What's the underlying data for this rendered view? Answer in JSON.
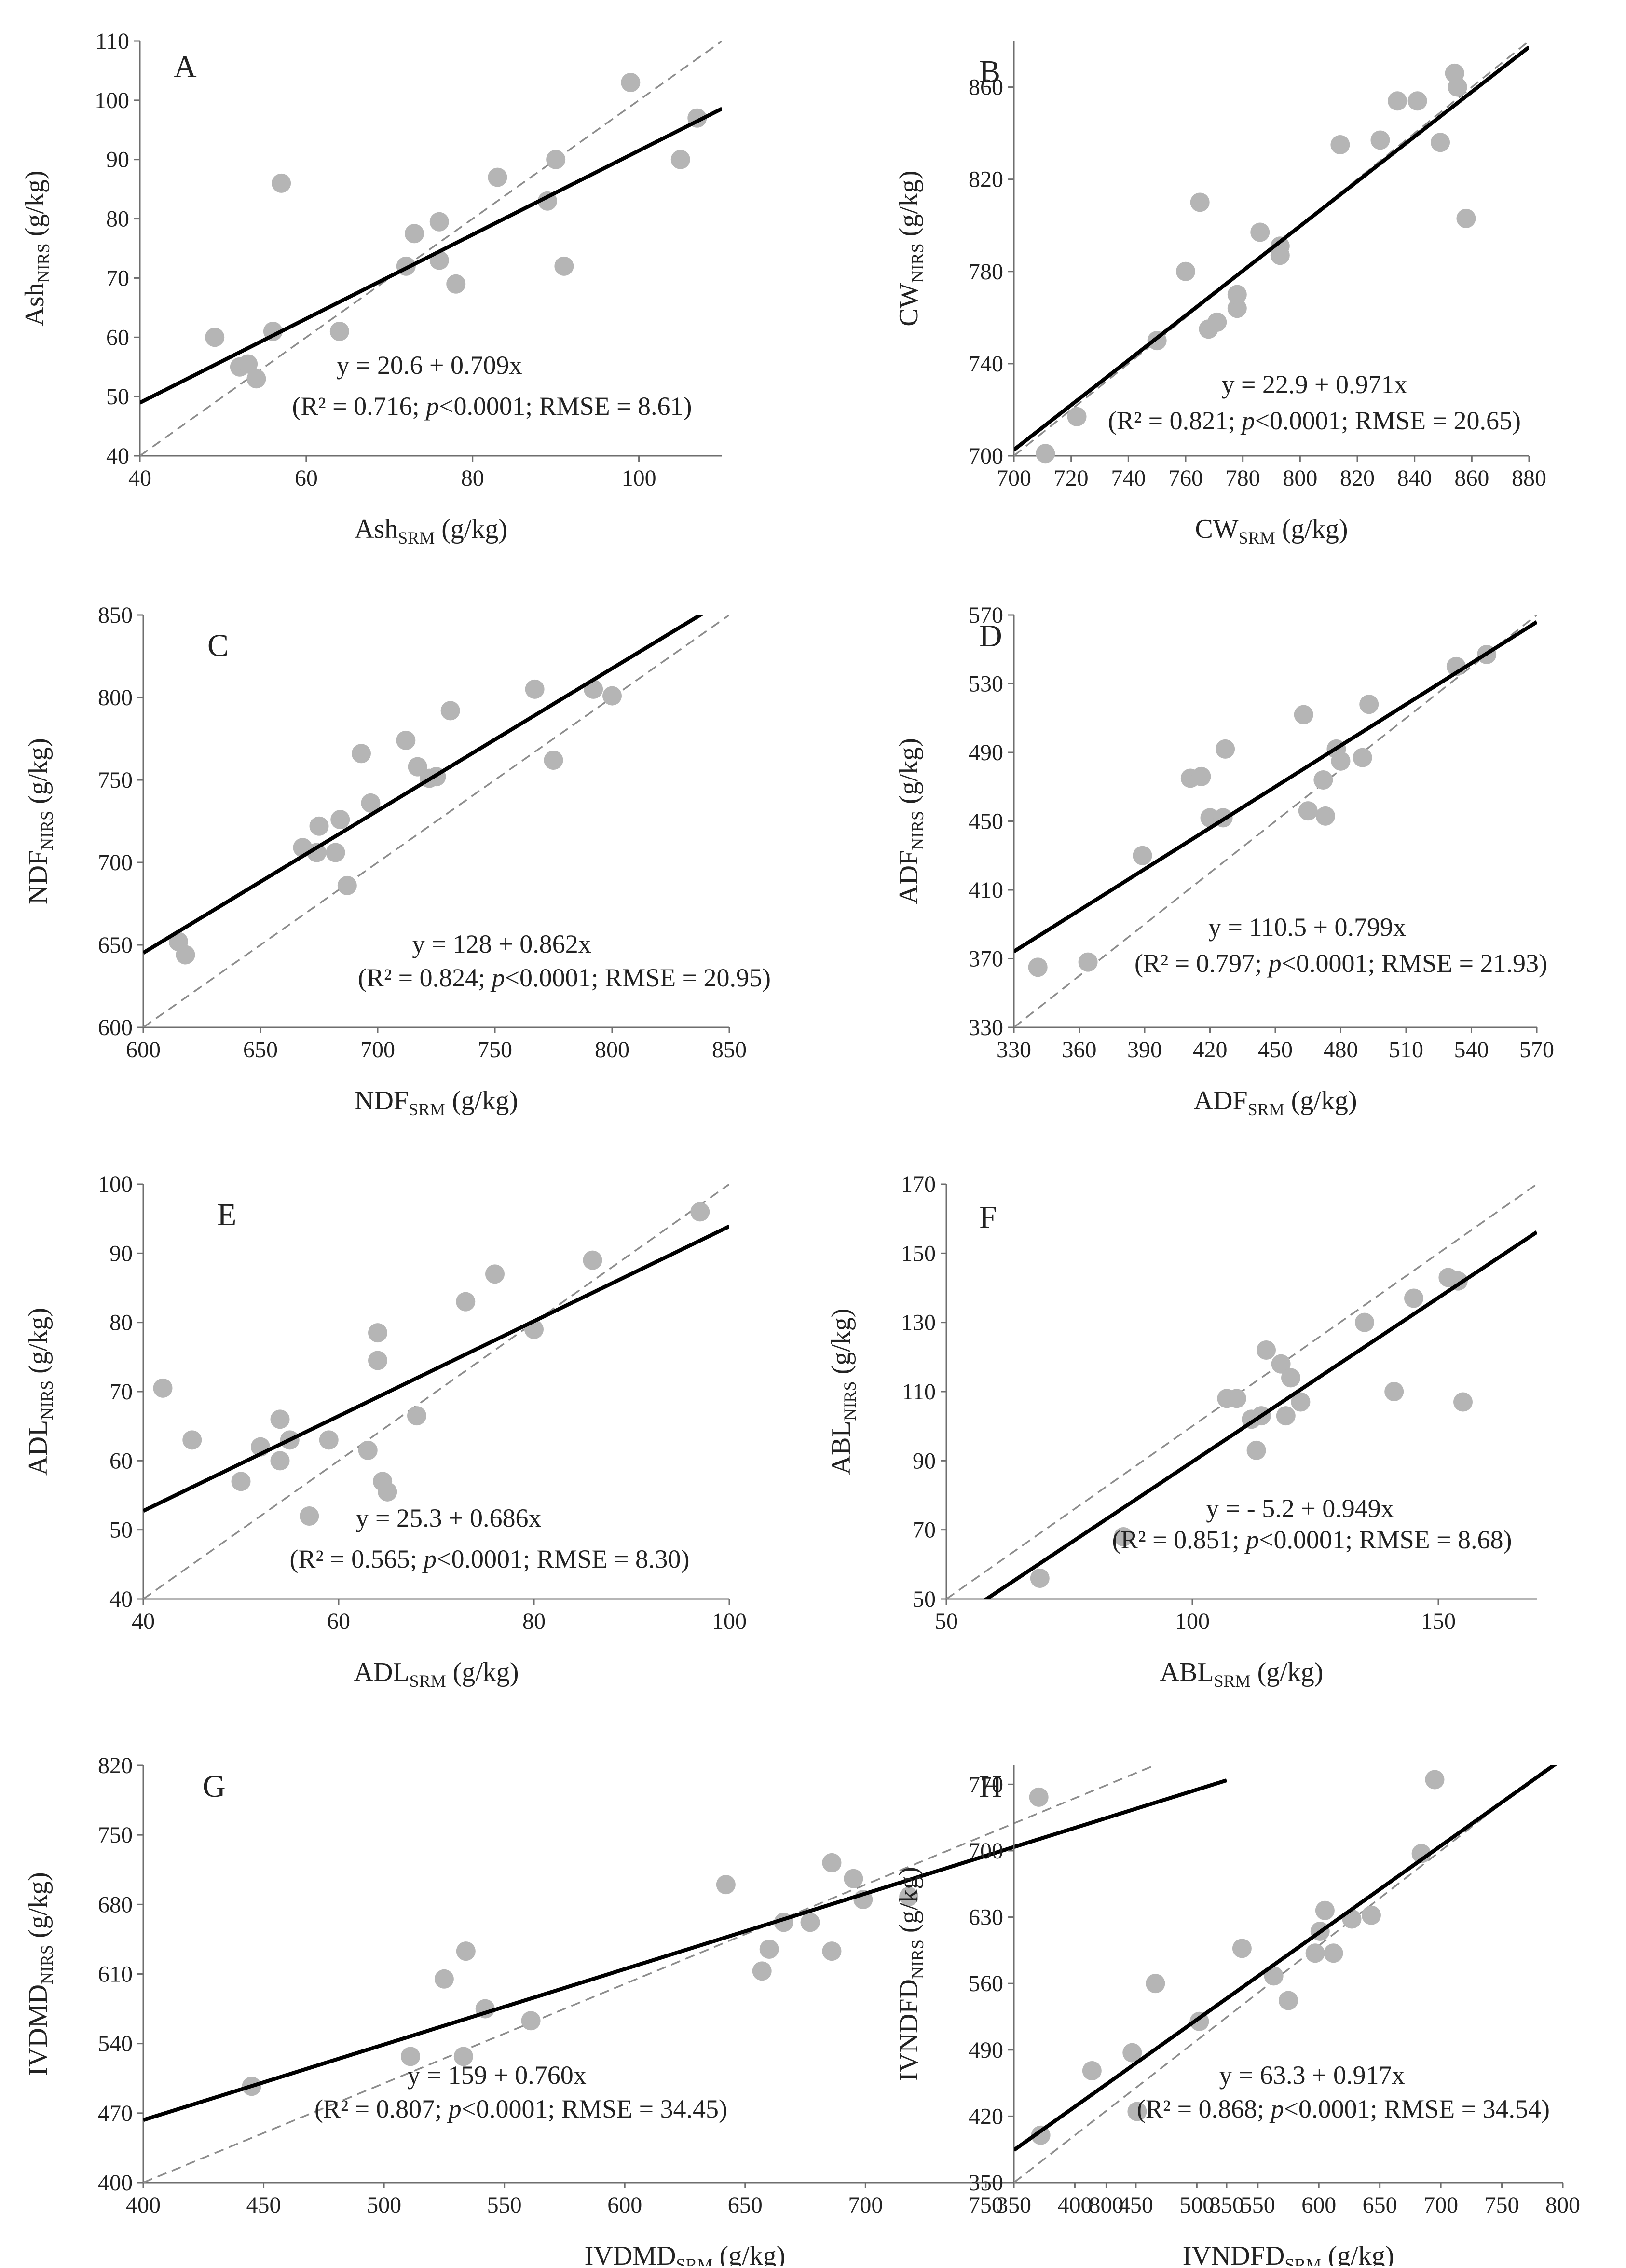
{
  "figure": {
    "background": "#ffffff",
    "point_color": "#b5b5b5",
    "fit_color": "#000000",
    "identity_color": "#8c8c8c"
  },
  "chart_data": [
    {
      "panel": "A",
      "type": "scatter",
      "xlabel": {
        "main": "Ash",
        "sub": "SRM",
        "unit": " (g/kg)"
      },
      "ylabel": {
        "main": "Ash",
        "sub": "NIRS",
        "unit": " (g/kg)"
      },
      "xlim": [
        40,
        110
      ],
      "ylim": [
        40,
        110
      ],
      "xticks": [
        40,
        60,
        80,
        100
      ],
      "yticks": [
        40,
        50,
        60,
        70,
        80,
        90,
        100,
        110
      ],
      "fit": {
        "intercept": 20.6,
        "slope": 0.709
      },
      "equation": "y = 20.6 + 0.709x",
      "stats": {
        "r2": "0.716",
        "p": "<0.0001",
        "rmse": "8.61"
      },
      "points": [
        [
          49,
          60
        ],
        [
          52,
          55
        ],
        [
          53,
          55.5
        ],
        [
          54,
          53
        ],
        [
          56,
          61
        ],
        [
          57,
          86
        ],
        [
          64,
          61
        ],
        [
          72,
          72
        ],
        [
          73,
          77.5
        ],
        [
          76,
          73
        ],
        [
          76,
          79.5
        ],
        [
          78,
          69
        ],
        [
          83,
          87
        ],
        [
          89,
          83
        ],
        [
          90,
          90
        ],
        [
          91,
          72
        ],
        [
          99,
          103
        ],
        [
          105,
          90
        ],
        [
          107,
          97
        ]
      ]
    },
    {
      "panel": "B",
      "type": "scatter",
      "xlabel": {
        "main": "CW",
        "sub": "SRM",
        "unit": " (g/kg)"
      },
      "ylabel": {
        "main": "CW",
        "sub": "NIRS",
        "unit": " (g/kg)"
      },
      "xlim": [
        700,
        880
      ],
      "ylim": [
        700,
        880
      ],
      "xticks": [
        700,
        720,
        740,
        760,
        780,
        800,
        820,
        840,
        860,
        880
      ],
      "yticks": [
        700,
        740,
        780,
        820,
        860
      ],
      "fit": {
        "intercept": 22.9,
        "slope": 0.971
      },
      "equation": "y = 22.9 + 0.971x",
      "stats": {
        "r2": "0.821",
        "p": "<0.0001",
        "rmse": "20.65"
      },
      "points": [
        [
          711,
          701
        ],
        [
          722,
          717
        ],
        [
          750,
          750
        ],
        [
          760,
          780
        ],
        [
          765,
          810
        ],
        [
          768,
          755
        ],
        [
          771,
          758
        ],
        [
          778,
          764
        ],
        [
          778,
          770
        ],
        [
          786,
          797
        ],
        [
          793,
          787
        ],
        [
          793,
          791
        ],
        [
          814,
          835
        ],
        [
          828,
          837
        ],
        [
          834,
          854
        ],
        [
          841,
          854
        ],
        [
          849,
          836
        ],
        [
          854,
          866
        ],
        [
          855,
          860
        ],
        [
          858,
          803
        ]
      ]
    },
    {
      "panel": "C",
      "type": "scatter",
      "xlabel": {
        "main": "NDF",
        "sub": "SRM",
        "unit": " (g/kg)"
      },
      "ylabel": {
        "main": "NDF",
        "sub": "NIRS",
        "unit": " (g/kg)"
      },
      "xlim": [
        600,
        850
      ],
      "ylim": [
        600,
        850
      ],
      "xticks": [
        600,
        650,
        700,
        750,
        800,
        850
      ],
      "yticks": [
        600,
        650,
        700,
        750,
        800,
        850
      ],
      "fit": {
        "intercept": 128,
        "slope": 0.862
      },
      "equation": "y = 128 + 0.862x",
      "stats": {
        "r2": "0.824",
        "p": "<0.0001",
        "rmse": "20.95"
      },
      "points": [
        [
          615,
          652
        ],
        [
          618,
          644
        ],
        [
          668,
          709
        ],
        [
          674,
          706
        ],
        [
          675,
          722
        ],
        [
          682,
          706
        ],
        [
          684,
          726
        ],
        [
          687,
          686
        ],
        [
          693,
          766
        ],
        [
          697,
          736
        ],
        [
          712,
          774
        ],
        [
          717,
          758
        ],
        [
          722,
          751
        ],
        [
          725,
          752
        ],
        [
          731,
          792
        ],
        [
          767,
          805
        ],
        [
          775,
          762
        ],
        [
          792,
          805
        ],
        [
          800,
          801
        ]
      ]
    },
    {
      "panel": "D",
      "type": "scatter",
      "xlabel": {
        "main": "ADF",
        "sub": "SRM",
        "unit": " (g/kg)"
      },
      "ylabel": {
        "main": "ADF",
        "sub": "NIRS",
        "unit": " (g/kg)"
      },
      "xlim": [
        330,
        570
      ],
      "ylim": [
        330,
        570
      ],
      "xticks": [
        330,
        360,
        390,
        420,
        450,
        480,
        510,
        540,
        570
      ],
      "yticks": [
        330,
        370,
        410,
        450,
        490,
        530,
        570
      ],
      "fit": {
        "intercept": 110.5,
        "slope": 0.799
      },
      "equation": "y = 110.5 + 0.799x",
      "stats": {
        "r2": "0.797",
        "p": "<0.0001",
        "rmse": "21.93"
      },
      "points": [
        [
          341,
          365
        ],
        [
          364,
          368
        ],
        [
          389,
          430
        ],
        [
          411,
          475
        ],
        [
          416,
          476
        ],
        [
          420,
          452
        ],
        [
          426,
          452
        ],
        [
          427,
          492
        ],
        [
          463,
          512
        ],
        [
          465,
          456
        ],
        [
          472,
          474
        ],
        [
          473,
          453
        ],
        [
          478,
          492
        ],
        [
          480,
          485
        ],
        [
          490,
          487
        ],
        [
          493,
          518
        ],
        [
          533,
          540
        ],
        [
          547,
          547
        ]
      ]
    },
    {
      "panel": "E",
      "type": "scatter",
      "xlabel": {
        "main": "ADL",
        "sub": "SRM",
        "unit": " (g/kg)"
      },
      "ylabel": {
        "main": "ADL",
        "sub": "NIRS",
        "unit": " (g/kg)"
      },
      "xlim": [
        40,
        100
      ],
      "ylim": [
        40,
        100
      ],
      "xticks": [
        40,
        60,
        80,
        100
      ],
      "yticks": [
        40,
        50,
        60,
        70,
        80,
        90,
        100
      ],
      "fit": {
        "intercept": 25.3,
        "slope": 0.686
      },
      "equation": "y = 25.3 + 0.686x",
      "stats": {
        "r2": "0.565",
        "p": "<0.0001",
        "rmse": "8.30"
      },
      "points": [
        [
          42,
          70.5
        ],
        [
          45,
          63
        ],
        [
          50,
          57
        ],
        [
          52,
          62
        ],
        [
          54,
          60
        ],
        [
          54,
          66
        ],
        [
          55,
          63
        ],
        [
          57,
          52
        ],
        [
          59,
          63
        ],
        [
          63,
          61.5
        ],
        [
          64,
          78.5
        ],
        [
          64,
          74.5
        ],
        [
          64.5,
          57
        ],
        [
          65,
          55.5
        ],
        [
          68,
          66.5
        ],
        [
          73,
          83
        ],
        [
          76,
          87
        ],
        [
          80,
          79
        ],
        [
          86,
          89
        ],
        [
          97,
          96
        ]
      ]
    },
    {
      "panel": "F",
      "type": "scatter",
      "xlabel": {
        "main": "ABL",
        "sub": "SRM",
        "unit": " (g/kg)"
      },
      "ylabel": {
        "main": "ABL",
        "sub": "NIRS",
        "unit": " (g/kg)"
      },
      "xlim": [
        50,
        170
      ],
      "ylim": [
        50,
        170
      ],
      "xticks": [
        50,
        100,
        150
      ],
      "yticks": [
        50,
        70,
        90,
        110,
        130,
        150,
        170
      ],
      "fit": {
        "intercept": -5.2,
        "slope": 0.949
      },
      "equation": "y = - 5.2 + 0.949x",
      "stats": {
        "r2": "0.851",
        "p": "<0.0001",
        "rmse": "8.68"
      },
      "points": [
        [
          69,
          56
        ],
        [
          86,
          68
        ],
        [
          107,
          108
        ],
        [
          109,
          108
        ],
        [
          112,
          102
        ],
        [
          113,
          93
        ],
        [
          114,
          103
        ],
        [
          115,
          122
        ],
        [
          118,
          118
        ],
        [
          119,
          103
        ],
        [
          120,
          114
        ],
        [
          122,
          107
        ],
        [
          135,
          130
        ],
        [
          141,
          110
        ],
        [
          145,
          137
        ],
        [
          152,
          143
        ],
        [
          154,
          142
        ],
        [
          155,
          107
        ]
      ]
    },
    {
      "panel": "G",
      "type": "scatter",
      "xlabel": {
        "main": "IVDMD",
        "sub": "SRM",
        "unit": " (g/kg)"
      },
      "ylabel": {
        "main": "IVDMD",
        "sub": "NIRS",
        "unit": " (g/kg)"
      },
      "xlim": [
        400,
        850
      ],
      "ylim": [
        400,
        820
      ],
      "xticks": [
        400,
        450,
        500,
        550,
        600,
        650,
        700,
        750,
        800,
        850
      ],
      "yticks": [
        400,
        470,
        540,
        610,
        680,
        750,
        820
      ],
      "fit": {
        "intercept": 159,
        "slope": 0.76
      },
      "equation": "y = 159 + 0.760x",
      "stats": {
        "r2": "0.807",
        "p": "<0.0001",
        "rmse": "34.45"
      },
      "points": [
        [
          445,
          497
        ],
        [
          511,
          527
        ],
        [
          525,
          605
        ],
        [
          533,
          527
        ],
        [
          534,
          633
        ],
        [
          542,
          575
        ],
        [
          561,
          563
        ],
        [
          642,
          700
        ],
        [
          657,
          613
        ],
        [
          660,
          635
        ],
        [
          666,
          662
        ],
        [
          677,
          662
        ],
        [
          686,
          722
        ],
        [
          686,
          633
        ],
        [
          695,
          706
        ],
        [
          699,
          685
        ],
        [
          718,
          688
        ],
        [
          772,
          788
        ]
      ]
    },
    {
      "panel": "H",
      "type": "scatter",
      "xlabel": {
        "main": "IVNDFD",
        "sub": "SRM",
        "unit": " (g/kg)"
      },
      "ylabel": {
        "main": "IVNDFD",
        "sub": "NIRS",
        "unit": " (g/kg)"
      },
      "xlim": [
        350,
        800
      ],
      "ylim": [
        350,
        790
      ],
      "xticks": [
        350,
        400,
        450,
        500,
        550,
        600,
        650,
        700,
        750,
        800
      ],
      "yticks": [
        350,
        420,
        490,
        560,
        630,
        700,
        770
      ],
      "fit": {
        "intercept": 63.3,
        "slope": 0.917
      },
      "equation": "y = 63.3 + 0.917x",
      "stats": {
        "r2": "0.868",
        "p": "<0.0001",
        "rmse": "34.54"
      },
      "points": [
        [
          372,
          400
        ],
        [
          414,
          468
        ],
        [
          447,
          487
        ],
        [
          451,
          425
        ],
        [
          466,
          560
        ],
        [
          502,
          520
        ],
        [
          537,
          597
        ],
        [
          563,
          568
        ],
        [
          575,
          542
        ],
        [
          597,
          592
        ],
        [
          601,
          615
        ],
        [
          605,
          637
        ],
        [
          612,
          592
        ],
        [
          627,
          628
        ],
        [
          643,
          632
        ],
        [
          684,
          697
        ],
        [
          695,
          775
        ]
      ]
    }
  ]
}
